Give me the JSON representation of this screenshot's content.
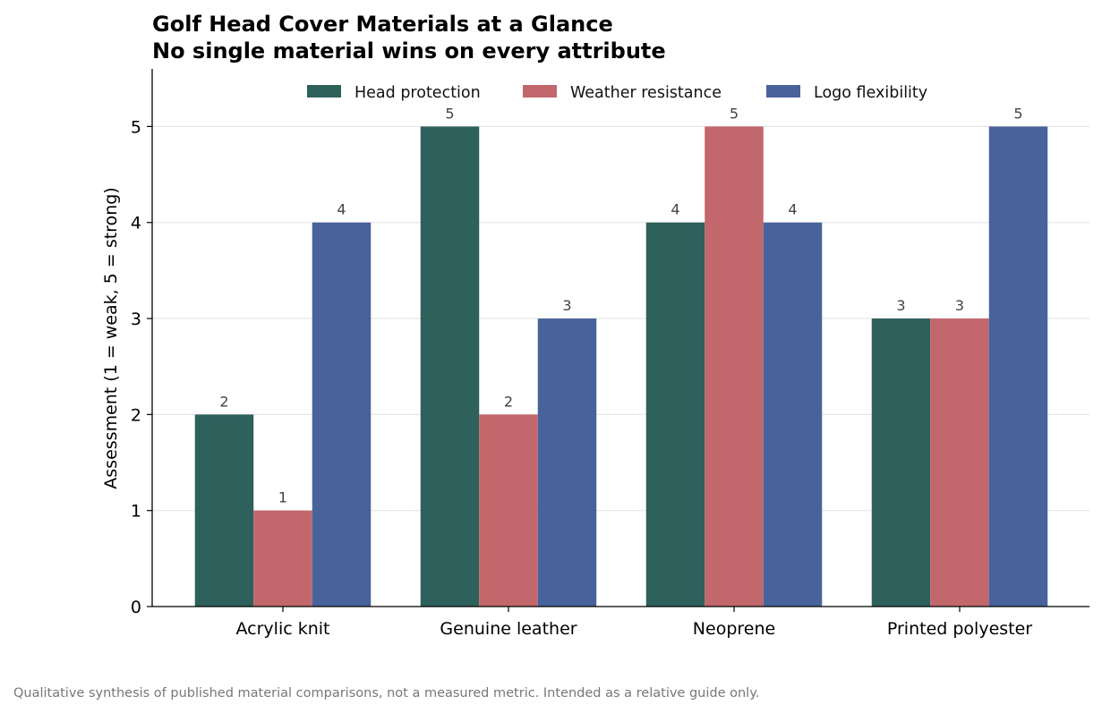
{
  "chart_data": {
    "type": "bar",
    "title": "Golf Head Cover Materials at a Glance",
    "subtitle": "No single material wins on every attribute",
    "categories": [
      "Acrylic knit",
      "Genuine leather",
      "Neoprene",
      "Printed polyester"
    ],
    "series": [
      {
        "name": "Head protection",
        "values": [
          2,
          5,
          4,
          3
        ],
        "color": "#2e605c"
      },
      {
        "name": "Weather resistance",
        "values": [
          1,
          2,
          5,
          3
        ],
        "color": "#c2676b"
      },
      {
        "name": "Logo flexibility",
        "values": [
          4,
          3,
          4,
          5
        ],
        "color": "#48639b"
      }
    ],
    "xlabel": "",
    "ylabel": "Assessment  (1 = weak, 5 = strong)",
    "ylim": [
      0,
      5.6
    ],
    "yticks": [
      0,
      1,
      2,
      3,
      4,
      5
    ],
    "grid": "horizontal",
    "legend_position": "top-center",
    "footnote": "Qualitative synthesis of published material comparisons, not a measured metric. Intended as a relative guide only."
  }
}
